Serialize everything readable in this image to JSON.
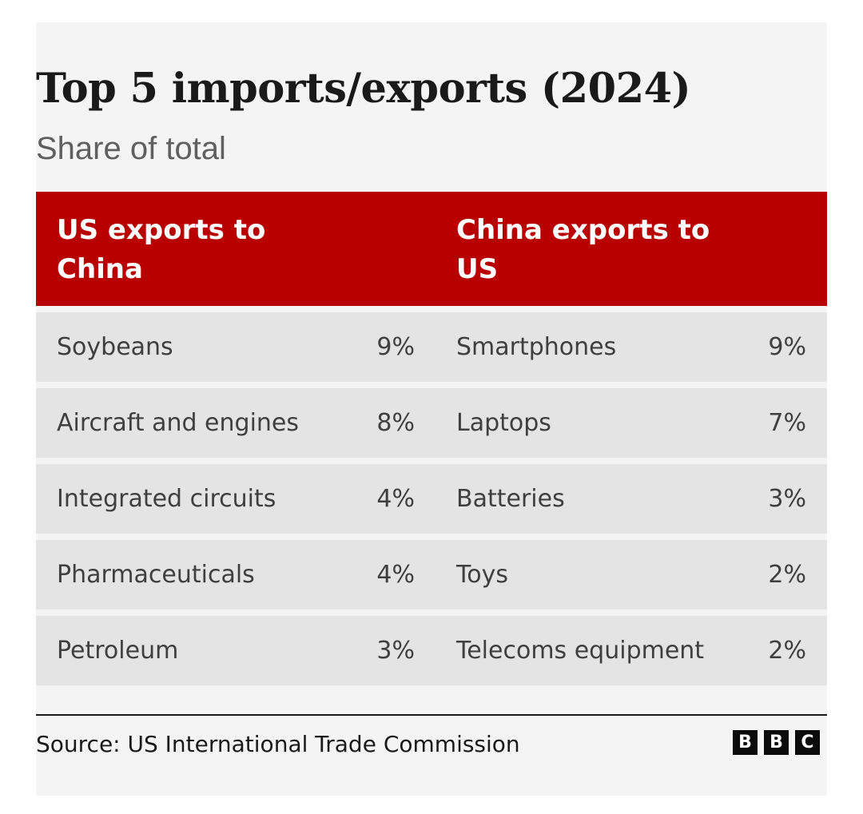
{
  "title": "Top 5 imports/exports (2024)",
  "subtitle": "Share of total",
  "colors": {
    "header": "#b80000",
    "row": "#e4e4e4",
    "background": "#f4f4f4"
  },
  "chart_data": {
    "type": "table",
    "title": "Top 5 imports/exports (2024)",
    "subtitle": "Share of total",
    "columns": [
      "US exports to China",
      "China exports to US"
    ],
    "rows": [
      {
        "us_item": "Soybeans",
        "us_share": "9%",
        "cn_item": "Smartphones",
        "cn_share": "9%"
      },
      {
        "us_item": "Aircraft and engines",
        "us_share": "8%",
        "cn_item": "Laptops",
        "cn_share": "7%"
      },
      {
        "us_item": "Integrated circuits",
        "us_share": "4%",
        "cn_item": "Batteries",
        "cn_share": "3%"
      },
      {
        "us_item": "Pharmaceuticals",
        "us_share": "4%",
        "cn_item": "Toys",
        "cn_share": "2%"
      },
      {
        "us_item": "Petroleum",
        "us_share": "3%",
        "cn_item": "Telecoms equipment",
        "cn_share": "2%"
      }
    ]
  },
  "source": "Source: US International Trade Commission",
  "logo": [
    "B",
    "B",
    "C"
  ]
}
